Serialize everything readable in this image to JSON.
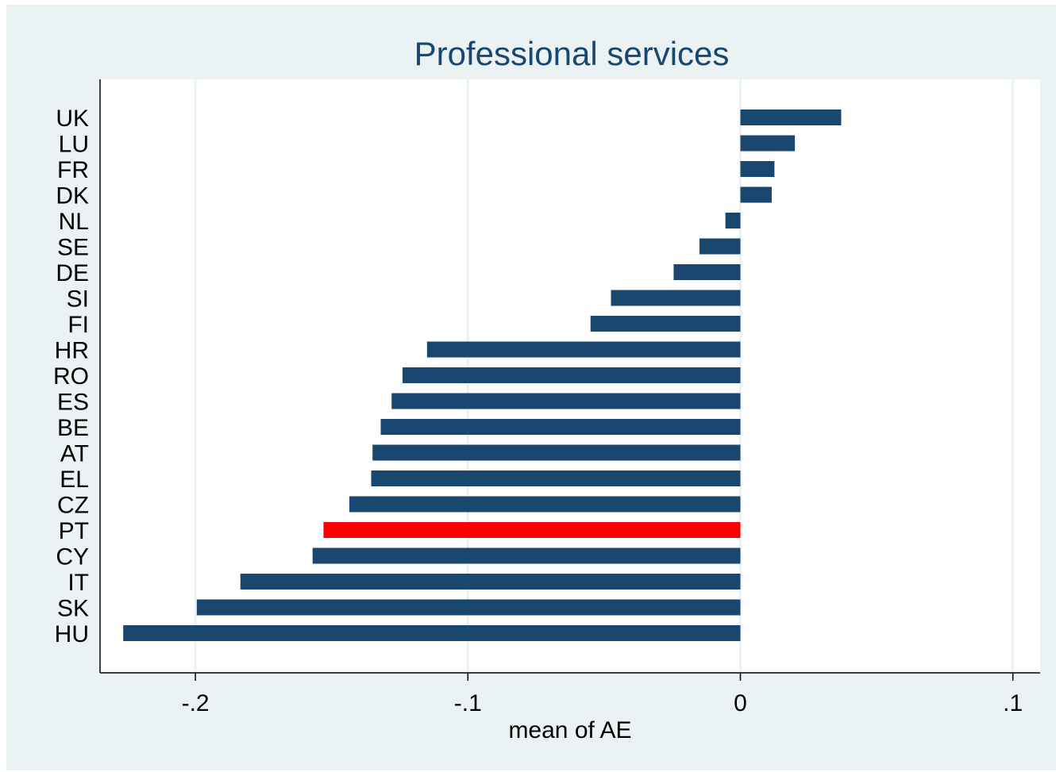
{
  "chart_data": {
    "type": "bar",
    "orientation": "horizontal",
    "title": "Professional services",
    "xlabel": "mean of AE",
    "ylabel": "",
    "categories": [
      "UK",
      "LU",
      "FR",
      "DK",
      "NL",
      "SE",
      "DE",
      "SI",
      "FI",
      "HR",
      "RO",
      "ES",
      "BE",
      "AT",
      "EL",
      "CZ",
      "PT",
      "CY",
      "IT",
      "SK",
      "HU"
    ],
    "values": [
      0.037,
      0.02,
      0.0125,
      0.0115,
      -0.0055,
      -0.015,
      -0.0245,
      -0.0475,
      -0.055,
      -0.115,
      -0.124,
      -0.128,
      -0.132,
      -0.135,
      -0.1355,
      -0.1435,
      -0.153,
      -0.157,
      -0.1835,
      -0.1995,
      -0.2265
    ],
    "highlight": "PT",
    "xlim": [
      -0.235,
      0.11
    ],
    "xticks": [
      -0.2,
      -0.1,
      0,
      0.1
    ],
    "xtick_labels": [
      "-.2",
      "-.1",
      "0",
      ".1"
    ],
    "grid": "vertical",
    "legend": "none",
    "colors": {
      "bar": "#1a476f",
      "highlight": "#ff0000",
      "background": "#eaf2f3",
      "plot": "#ffffff",
      "grid": "#eaf2f3",
      "title": "#1a476f"
    }
  }
}
